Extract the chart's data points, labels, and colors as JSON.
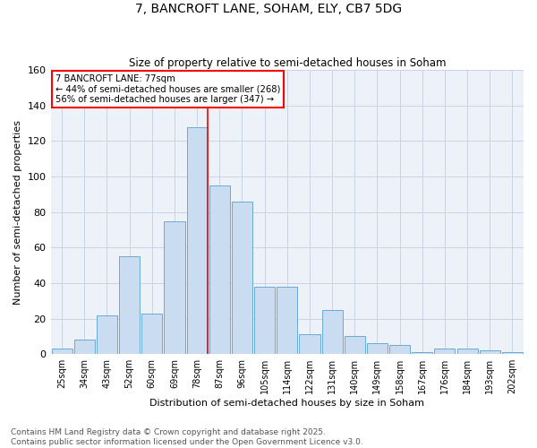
{
  "title1": "7, BANCROFT LANE, SOHAM, ELY, CB7 5DG",
  "title2": "Size of property relative to semi-detached houses in Soham",
  "xlabel": "Distribution of semi-detached houses by size in Soham",
  "ylabel": "Number of semi-detached properties",
  "bar_color": "#c9dcf0",
  "bar_edge_color": "#6aaad4",
  "grid_color": "#c8d4e4",
  "background_color": "#edf2f9",
  "property_label": "7 BANCROFT LANE: 77sqm",
  "annotation_line1": "← 44% of semi-detached houses are smaller (268)",
  "annotation_line2": "56% of semi-detached houses are larger (347) →",
  "annotation_box_color": "white",
  "annotation_box_edge": "red",
  "categories": [
    "25sqm",
    "34sqm",
    "43sqm",
    "52sqm",
    "60sqm",
    "69sqm",
    "78sqm",
    "87sqm",
    "96sqm",
    "105sqm",
    "114sqm",
    "122sqm",
    "131sqm",
    "140sqm",
    "149sqm",
    "158sqm",
    "167sqm",
    "176sqm",
    "184sqm",
    "193sqm",
    "202sqm"
  ],
  "values": [
    3,
    8,
    22,
    55,
    23,
    75,
    128,
    95,
    86,
    38,
    38,
    11,
    25,
    10,
    6,
    5,
    1,
    3,
    3,
    2,
    1
  ],
  "red_line_bar_index": 6,
  "ylim": [
    0,
    160
  ],
  "yticks": [
    0,
    20,
    40,
    60,
    80,
    100,
    120,
    140,
    160
  ],
  "footer_line1": "Contains HM Land Registry data © Crown copyright and database right 2025.",
  "footer_line2": "Contains public sector information licensed under the Open Government Licence v3.0.",
  "footer_fontsize": 6.5,
  "title1_fontsize": 10,
  "title2_fontsize": 8.5,
  "xlabel_fontsize": 8,
  "ylabel_fontsize": 8,
  "xtick_fontsize": 7,
  "ytick_fontsize": 8,
  "bar_width": 0.92
}
